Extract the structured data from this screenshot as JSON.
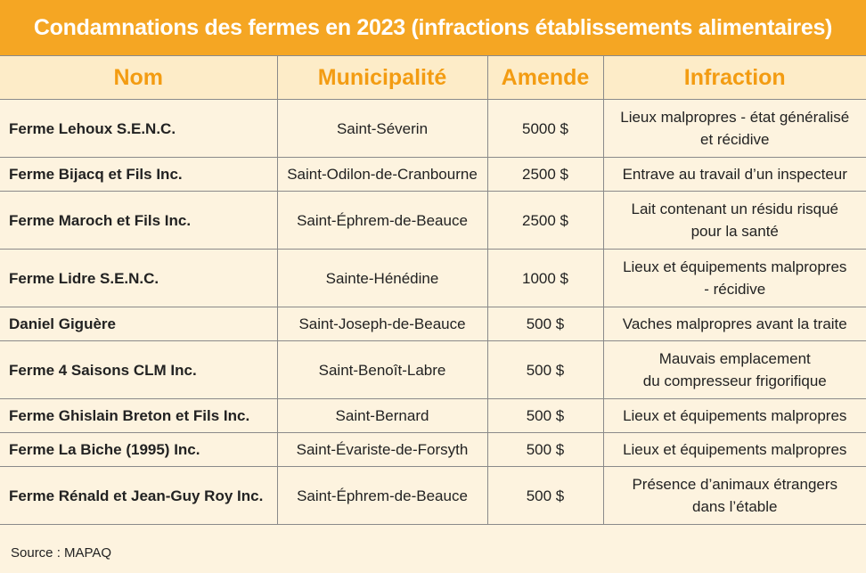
{
  "title": "Condamnations des fermes en 2023 (infractions établissements alimentaires)",
  "headers": {
    "nom": "Nom",
    "municipalite": "Municipalité",
    "amende": "Amende",
    "infraction": "Infraction"
  },
  "rows": [
    {
      "nom": "Ferme Lehoux S.E.N.C.",
      "municipalite": "Saint-Séverin",
      "amende": "5000 $",
      "infraction_l1": "Lieux malpropres - état généralisé",
      "infraction_l2": "et récidive"
    },
    {
      "nom": "Ferme Bijacq et Fils Inc.",
      "municipalite": "Saint-Odilon-de-Cranbourne",
      "amende": "2500 $",
      "infraction_l1": "Entrave au travail d’un inspecteur",
      "infraction_l2": ""
    },
    {
      "nom": "Ferme Maroch et Fils Inc.",
      "municipalite": "Saint-Éphrem-de-Beauce",
      "amende": "2500 $",
      "infraction_l1": "Lait contenant un résidu risqué",
      "infraction_l2": "pour la santé"
    },
    {
      "nom": "Ferme Lidre S.E.N.C.",
      "municipalite": "Sainte-Hénédine",
      "amende": "1000 $",
      "infraction_l1": "Lieux et équipements malpropres",
      "infraction_l2": "- récidive"
    },
    {
      "nom": "Daniel Giguère",
      "municipalite": "Saint-Joseph-de-Beauce",
      "amende": "500 $",
      "infraction_l1": "Vaches malpropres avant la traite",
      "infraction_l2": ""
    },
    {
      "nom": "Ferme 4 Saisons CLM Inc.",
      "municipalite": "Saint-Benoît-Labre",
      "amende": "500 $",
      "infraction_l1": "Mauvais emplacement",
      "infraction_l2": "du compresseur frigorifique"
    },
    {
      "nom": "Ferme Ghislain Breton et Fils Inc.",
      "municipalite": "Saint-Bernard",
      "amende": "500 $",
      "infraction_l1": "Lieux et équipements malpropres",
      "infraction_l2": ""
    },
    {
      "nom": "Ferme La Biche (1995) Inc.",
      "municipalite": "Saint-Évariste-de-Forsyth",
      "amende": "500 $",
      "infraction_l1": "Lieux et équipements malpropres",
      "infraction_l2": ""
    },
    {
      "nom": "Ferme Rénald et Jean-Guy Roy Inc.",
      "municipalite": "Saint-Éphrem-de-Beauce",
      "amende": "500 $",
      "infraction_l1": "Présence d’animaux étrangers",
      "infraction_l2": "dans l’étable"
    }
  ],
  "source": "Source : MAPAQ",
  "colors": {
    "title_bg": "#f5a623",
    "header_text": "#f39c12",
    "header_bg": "#fdecc8",
    "body_bg": "#fdf3df"
  }
}
